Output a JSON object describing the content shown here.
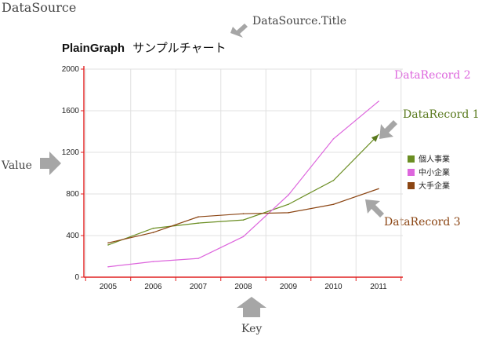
{
  "annotations": {
    "datasource": "DataSource",
    "datasource_title": "DataSource.Title",
    "value": "Value",
    "key": "Key",
    "record1": "DataRecord 1",
    "record2": "DataRecord 2",
    "record3": "DataRecord 3"
  },
  "colors": {
    "record1": "#5a7a1e",
    "record2": "#dd66dd",
    "record3": "#8b4513",
    "axis": "#e02020",
    "grid": "#e0e0e0",
    "arrow": "#a6a6a6"
  },
  "chart_data": {
    "type": "line",
    "title": "PlainGraph サンプルチャート",
    "title_bold": "PlainGraph",
    "title_rest": "サンプルチャート",
    "categories": [
      "2005",
      "2006",
      "2007",
      "2008",
      "2009",
      "2010",
      "2011"
    ],
    "series": [
      {
        "name": "個人事業",
        "color": "#6b8e23",
        "values": [
          310,
          470,
          520,
          550,
          700,
          930,
          1370
        ]
      },
      {
        "name": "中小企業",
        "color": "#dd66dd",
        "values": [
          100,
          150,
          180,
          390,
          790,
          1330,
          1690
        ]
      },
      {
        "name": "大手企業",
        "color": "#8b4513",
        "values": [
          330,
          430,
          580,
          610,
          620,
          700,
          850
        ]
      }
    ],
    "yticks": [
      "0",
      "400",
      "800",
      "1200",
      "1600",
      "2000"
    ],
    "ylim": [
      0,
      2000
    ],
    "grid": true,
    "legend_position": "right"
  }
}
